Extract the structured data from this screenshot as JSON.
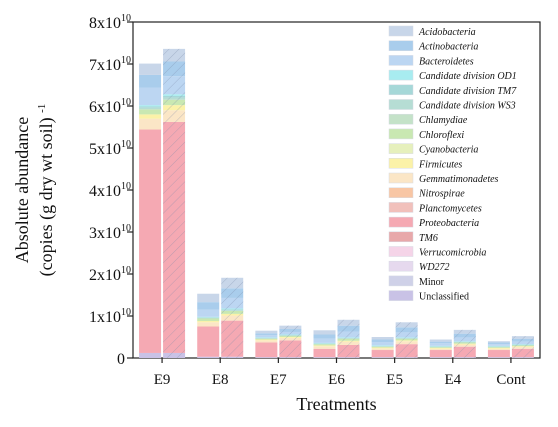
{
  "chart_data": {
    "type": "bar",
    "stacked": true,
    "xlabel": "Treatments",
    "ylabel": [
      "Absolute abundance",
      "(copies (g dry wt soil) -1)"
    ],
    "ylabel_superscript": "-1",
    "yunit_exponent": 10,
    "ylim": [
      0,
      8
    ],
    "yticks": [
      0,
      1,
      2,
      3,
      4,
      5,
      6,
      7,
      8
    ],
    "ytick_labels": [
      "0",
      "1x10",
      "2x10",
      "3x10",
      "4x10",
      "5x10",
      "6x10",
      "7x10",
      "8x10"
    ],
    "categories": [
      "E9",
      "E8",
      "E7",
      "E6",
      "E5",
      "E4",
      "Cont"
    ],
    "bars_per_category": [
      "plain",
      "hatched"
    ],
    "legend_position": "top-right",
    "series": [
      {
        "name": "Unclassified",
        "italic": false,
        "color": "#c9c2e6",
        "values": [
          [
            0.12,
            0.12
          ],
          [
            0.03,
            0.03
          ],
          [
            0.02,
            0.02
          ],
          [
            0.02,
            0.02
          ],
          [
            0.02,
            0.02
          ],
          [
            0.02,
            0.02
          ],
          [
            0.02,
            0.02
          ]
        ]
      },
      {
        "name": "Minor",
        "italic": false,
        "color": "#cfd1e8",
        "values": [
          [
            0.0,
            0.0
          ],
          [
            0.0,
            0.0
          ],
          [
            0.0,
            0.0
          ],
          [
            0.0,
            0.0
          ],
          [
            0.0,
            0.0
          ],
          [
            0.0,
            0.0
          ],
          [
            0.0,
            0.0
          ]
        ]
      },
      {
        "name": "WD272",
        "italic": true,
        "color": "#e6d9ee",
        "values": [
          [
            0.0,
            0.0
          ],
          [
            0.0,
            0.0
          ],
          [
            0.0,
            0.0
          ],
          [
            0.0,
            0.0
          ],
          [
            0.0,
            0.0
          ],
          [
            0.0,
            0.0
          ],
          [
            0.0,
            0.0
          ]
        ]
      },
      {
        "name": "Verrucomicrobia",
        "italic": true,
        "color": "#f5d4e8",
        "values": [
          [
            0.0,
            0.0
          ],
          [
            0.0,
            0.0
          ],
          [
            0.0,
            0.0
          ],
          [
            0.0,
            0.0
          ],
          [
            0.0,
            0.0
          ],
          [
            0.0,
            0.0
          ],
          [
            0.0,
            0.0
          ]
        ]
      },
      {
        "name": "TM6",
        "italic": true,
        "color": "#e8a8aa",
        "values": [
          [
            0.0,
            0.0
          ],
          [
            0.0,
            0.0
          ],
          [
            0.0,
            0.0
          ],
          [
            0.0,
            0.0
          ],
          [
            0.0,
            0.0
          ],
          [
            0.0,
            0.0
          ],
          [
            0.0,
            0.0
          ]
        ]
      },
      {
        "name": "Proteobacteria",
        "italic": true,
        "color": "#f5a9b3",
        "values": [
          [
            5.32,
            5.5
          ],
          [
            0.72,
            0.86
          ],
          [
            0.35,
            0.4
          ],
          [
            0.2,
            0.29
          ],
          [
            0.17,
            0.31
          ],
          [
            0.17,
            0.25
          ],
          [
            0.17,
            0.2
          ]
        ]
      },
      {
        "name": "Planctomycetes",
        "italic": true,
        "color": "#f1c0bb",
        "values": [
          [
            0.0,
            0.0
          ],
          [
            0.0,
            0.0
          ],
          [
            0.0,
            0.0
          ],
          [
            0.0,
            0.0
          ],
          [
            0.0,
            0.0
          ],
          [
            0.0,
            0.0
          ],
          [
            0.0,
            0.0
          ]
        ]
      },
      {
        "name": "Nitrospirae",
        "italic": true,
        "color": "#f8c6a4",
        "values": [
          [
            0.0,
            0.0
          ],
          [
            0.0,
            0.0
          ],
          [
            0.0,
            0.0
          ],
          [
            0.0,
            0.0
          ],
          [
            0.0,
            0.0
          ],
          [
            0.0,
            0.0
          ],
          [
            0.0,
            0.0
          ]
        ]
      },
      {
        "name": "Gemmatimonadetes",
        "italic": true,
        "color": "#fbe6c6",
        "values": [
          [
            0.26,
            0.28
          ],
          [
            0.1,
            0.12
          ],
          [
            0.05,
            0.06
          ],
          [
            0.06,
            0.08
          ],
          [
            0.04,
            0.07
          ],
          [
            0.03,
            0.05
          ],
          [
            0.03,
            0.04
          ]
        ]
      },
      {
        "name": "Firmicutes",
        "italic": true,
        "color": "#fbf2a8",
        "values": [
          [
            0.1,
            0.12
          ],
          [
            0.03,
            0.04
          ],
          [
            0.02,
            0.02
          ],
          [
            0.02,
            0.02
          ],
          [
            0.02,
            0.02
          ],
          [
            0.02,
            0.02
          ],
          [
            0.02,
            0.02
          ]
        ]
      },
      {
        "name": "Cyanobacteria",
        "italic": true,
        "color": "#e6f0bc",
        "values": [
          [
            0.0,
            0.0
          ],
          [
            0.0,
            0.0
          ],
          [
            0.0,
            0.0
          ],
          [
            0.0,
            0.0
          ],
          [
            0.0,
            0.0
          ],
          [
            0.0,
            0.0
          ],
          [
            0.0,
            0.0
          ]
        ]
      },
      {
        "name": "Chloroflexi",
        "italic": true,
        "color": "#c9e8b2",
        "values": [
          [
            0.12,
            0.13
          ],
          [
            0.06,
            0.07
          ],
          [
            0.02,
            0.03
          ],
          [
            0.03,
            0.05
          ],
          [
            0.02,
            0.04
          ],
          [
            0.02,
            0.03
          ],
          [
            0.02,
            0.02
          ]
        ]
      },
      {
        "name": "Chlamydiae",
        "italic": true,
        "color": "#c4e2c8",
        "values": [
          [
            0.0,
            0.0
          ],
          [
            0.0,
            0.0
          ],
          [
            0.0,
            0.0
          ],
          [
            0.0,
            0.0
          ],
          [
            0.0,
            0.0
          ],
          [
            0.0,
            0.0
          ],
          [
            0.0,
            0.0
          ]
        ]
      },
      {
        "name": "Candidate division WS3",
        "italic": true,
        "color": "#b6ddd4",
        "values": [
          [
            0.04,
            0.05
          ],
          [
            0.02,
            0.02
          ],
          [
            0.01,
            0.01
          ],
          [
            0.01,
            0.01
          ],
          [
            0.01,
            0.01
          ],
          [
            0.01,
            0.01
          ],
          [
            0.01,
            0.01
          ]
        ]
      },
      {
        "name": "Candidate division TM7",
        "italic": true,
        "color": "#a6d8d8",
        "values": [
          [
            0.03,
            0.04
          ],
          [
            0.01,
            0.02
          ],
          [
            0.01,
            0.01
          ],
          [
            0.01,
            0.01
          ],
          [
            0.01,
            0.01
          ],
          [
            0.01,
            0.01
          ],
          [
            0.01,
            0.01
          ]
        ]
      },
      {
        "name": "Candidate division OD1",
        "italic": true,
        "color": "#a8ecf0",
        "values": [
          [
            0.03,
            0.04
          ],
          [
            0.01,
            0.02
          ],
          [
            0.01,
            0.01
          ],
          [
            0.01,
            0.01
          ],
          [
            0.01,
            0.01
          ],
          [
            0.01,
            0.01
          ],
          [
            0.01,
            0.01
          ]
        ]
      },
      {
        "name": "Bacteroidetes",
        "italic": true,
        "color": "#bcd6f2",
        "values": [
          [
            0.42,
            0.43
          ],
          [
            0.17,
            0.25
          ],
          [
            0.05,
            0.06
          ],
          [
            0.1,
            0.14
          ],
          [
            0.08,
            0.12
          ],
          [
            0.06,
            0.09
          ],
          [
            0.04,
            0.06
          ]
        ]
      },
      {
        "name": "Actinobacteria",
        "italic": true,
        "color": "#a9cdec",
        "values": [
          [
            0.3,
            0.35
          ],
          [
            0.18,
            0.23
          ],
          [
            0.05,
            0.07
          ],
          [
            0.1,
            0.14
          ],
          [
            0.06,
            0.12
          ],
          [
            0.04,
            0.09
          ],
          [
            0.04,
            0.07
          ]
        ]
      },
      {
        "name": "Acidobacteria",
        "italic": true,
        "color": "#c8d6e9",
        "values": [
          [
            0.27,
            0.3
          ],
          [
            0.2,
            0.25
          ],
          [
            0.06,
            0.08
          ],
          [
            0.1,
            0.14
          ],
          [
            0.06,
            0.12
          ],
          [
            0.05,
            0.09
          ],
          [
            0.03,
            0.06
          ]
        ]
      }
    ]
  }
}
